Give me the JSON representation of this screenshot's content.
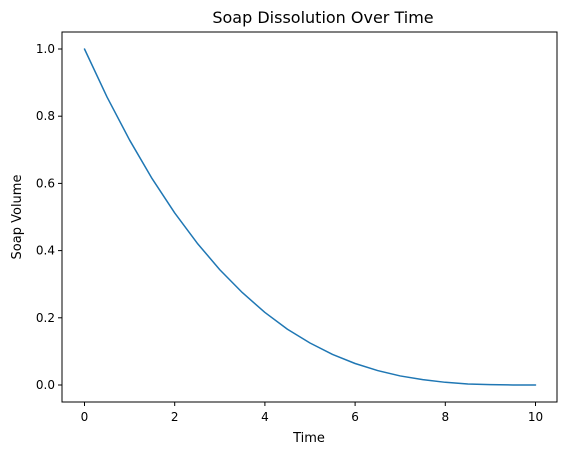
{
  "chart_data": {
    "type": "line",
    "title": "Soap Dissolution Over Time",
    "xlabel": "Time",
    "ylabel": "Soap Volume",
    "xlim": [
      0,
      10
    ],
    "ylim": [
      0,
      1
    ],
    "grid": false,
    "x_ticks": [
      "0",
      "2",
      "4",
      "6",
      "8",
      "10"
    ],
    "y_ticks": [
      "0.0",
      "0.2",
      "0.4",
      "0.6",
      "0.8",
      "1.0"
    ],
    "series": [
      {
        "color": "#1f77b4",
        "x": [
          0,
          0.5,
          1,
          1.5,
          2,
          2.5,
          3,
          3.5,
          4,
          4.5,
          5,
          5.5,
          6,
          6.5,
          7,
          7.5,
          8,
          8.5,
          9,
          9.5,
          10
        ],
        "y": [
          1.0,
          0.857,
          0.729,
          0.614,
          0.512,
          0.422,
          0.343,
          0.275,
          0.216,
          0.166,
          0.125,
          0.091,
          0.064,
          0.043,
          0.027,
          0.016,
          0.008,
          0.003,
          0.001,
          0.0001,
          0.0
        ]
      }
    ]
  }
}
